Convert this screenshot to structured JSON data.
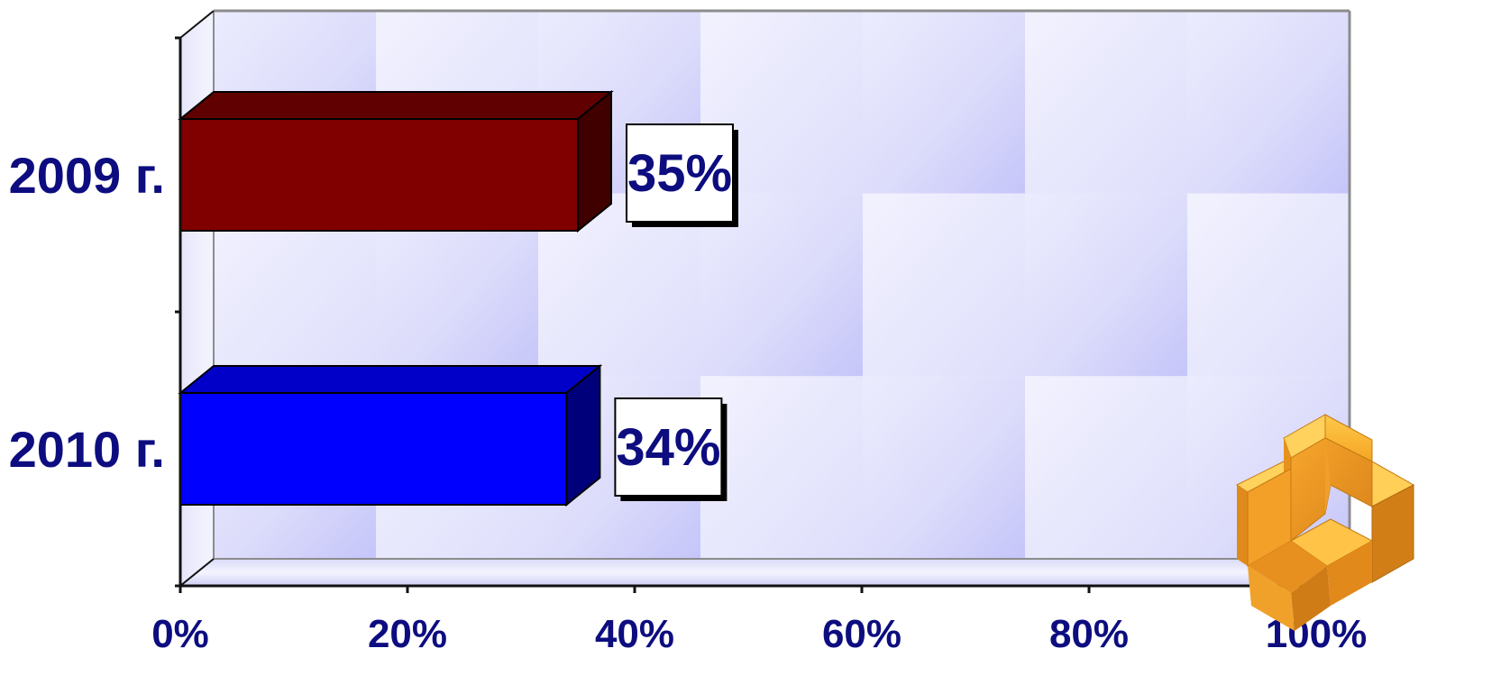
{
  "chart_data": {
    "type": "bar",
    "orientation": "horizontal",
    "style": "3d",
    "categories": [
      "2009 г.",
      "2010 г."
    ],
    "values": [
      35,
      34
    ],
    "data_labels": [
      "35%",
      "34%"
    ],
    "bar_colors": [
      "#800000",
      "#0000ff"
    ],
    "bar_top_colors": [
      "#600000",
      "#0000c8"
    ],
    "bar_side_colors": [
      "#400000",
      "#00007a"
    ],
    "xlim": [
      0,
      100
    ],
    "x_ticks": [
      0,
      20,
      40,
      60,
      80,
      100
    ],
    "x_tick_labels": [
      "0%",
      "20%",
      "40%",
      "60%",
      "80%",
      "100%"
    ],
    "label_color": "#0d0d80",
    "grid": false,
    "legend": "none",
    "background": "light blue checkered wall"
  },
  "decoration": {
    "icon": "orange-3d-corner-block-icon"
  }
}
